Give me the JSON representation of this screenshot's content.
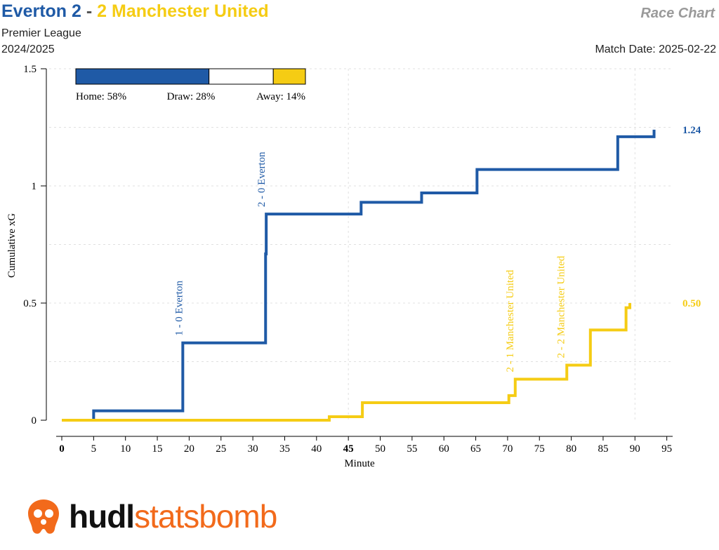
{
  "header": {
    "home_title": "Everton 2",
    "separator": " - ",
    "away_title": "2 Manchester United",
    "chart_label": "Race Chart",
    "competition": "Premier League",
    "season": "2024/2025",
    "match_date": "Match Date: 2025-02-22"
  },
  "colors": {
    "home": "#1f5aa6",
    "away": "#f5cc14",
    "draw": "#ffffff"
  },
  "probabilities": {
    "home_label": "Home: 58%",
    "draw_label": "Draw: 28%",
    "away_label": "Away: 14%",
    "home": 58,
    "draw": 28,
    "away": 14
  },
  "chart_data": {
    "type": "line",
    "xlabel": "Minute",
    "ylabel": "Cumulative xG",
    "xlim": [
      0,
      95
    ],
    "ylim": [
      0,
      1.5
    ],
    "x_ticks": [
      0,
      5,
      10,
      15,
      20,
      25,
      30,
      35,
      40,
      45,
      50,
      55,
      60,
      65,
      70,
      75,
      80,
      85,
      90,
      95
    ],
    "x_tick_labels": [
      "0",
      "5",
      "10",
      "15",
      "20",
      "25",
      "30",
      "35",
      "40",
      "45",
      "50",
      "55",
      "60",
      "65",
      "70",
      "75",
      "80",
      "85",
      "90",
      "95"
    ],
    "y_ticks": [
      0,
      0.5,
      1,
      1.5
    ],
    "y_tick_labels": [
      "0",
      "0.5",
      "1",
      "1.5"
    ],
    "series": [
      {
        "name": "Everton",
        "final_label": "1.24",
        "steps": [
          [
            0,
            0
          ],
          [
            5,
            0.04
          ],
          [
            19,
            0.33
          ],
          [
            32,
            0.71
          ],
          [
            32.1,
            0.88
          ],
          [
            47,
            0.93
          ],
          [
            56.5,
            0.97
          ],
          [
            65.2,
            1.07
          ],
          [
            87.3,
            1.21
          ],
          [
            93,
            1.24
          ]
        ],
        "end_x": 93
      },
      {
        "name": "Manchester United",
        "final_label": "0.50",
        "steps": [
          [
            0,
            0
          ],
          [
            42,
            0.015
          ],
          [
            47.2,
            0.075
          ],
          [
            70.2,
            0.105
          ],
          [
            71.2,
            0.175
          ],
          [
            79.3,
            0.235
          ],
          [
            83,
            0.385
          ],
          [
            88.6,
            0.48
          ],
          [
            89.2,
            0.5
          ]
        ],
        "end_x": 89.2
      }
    ],
    "annotations": [
      {
        "team": "home",
        "minute": 19,
        "y": 0.33,
        "text": "1 - 0 Everton"
      },
      {
        "team": "home",
        "minute": 32,
        "y": 0.88,
        "text": "2 - 0 Everton"
      },
      {
        "team": "away",
        "minute": 71,
        "y": 0.175,
        "text": "2 - 1 Manchester United"
      },
      {
        "team": "away",
        "minute": 79,
        "y": 0.235,
        "text": "2 - 2 Manchester United"
      }
    ],
    "grid": true
  },
  "logo": {
    "part1": "hudl",
    "part2": "statsbomb"
  }
}
